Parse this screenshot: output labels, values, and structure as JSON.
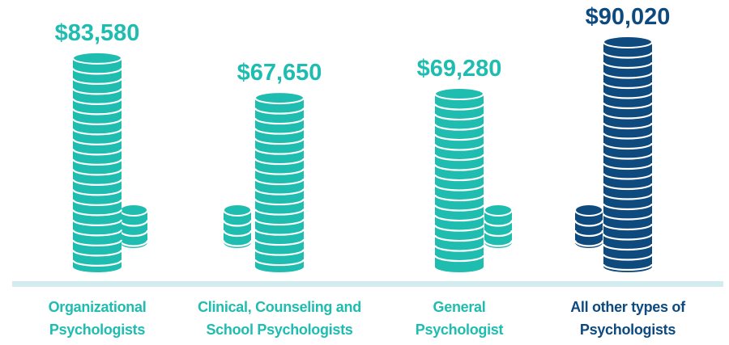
{
  "chart_data": {
    "type": "bar",
    "categories": [
      "Organizational Psychologists",
      "Clinical, Counseling and School Psychologists",
      "General Psychologist",
      "All other types of Psychologists"
    ],
    "values": [
      83580,
      67650,
      69280,
      90020
    ],
    "value_labels": [
      "$83,580",
      "$67,650",
      "$69,280",
      "$90,020"
    ],
    "colors": [
      "#1fbcb0",
      "#1fbcb0",
      "#1fbcb0",
      "#0e4a7e"
    ]
  }
}
